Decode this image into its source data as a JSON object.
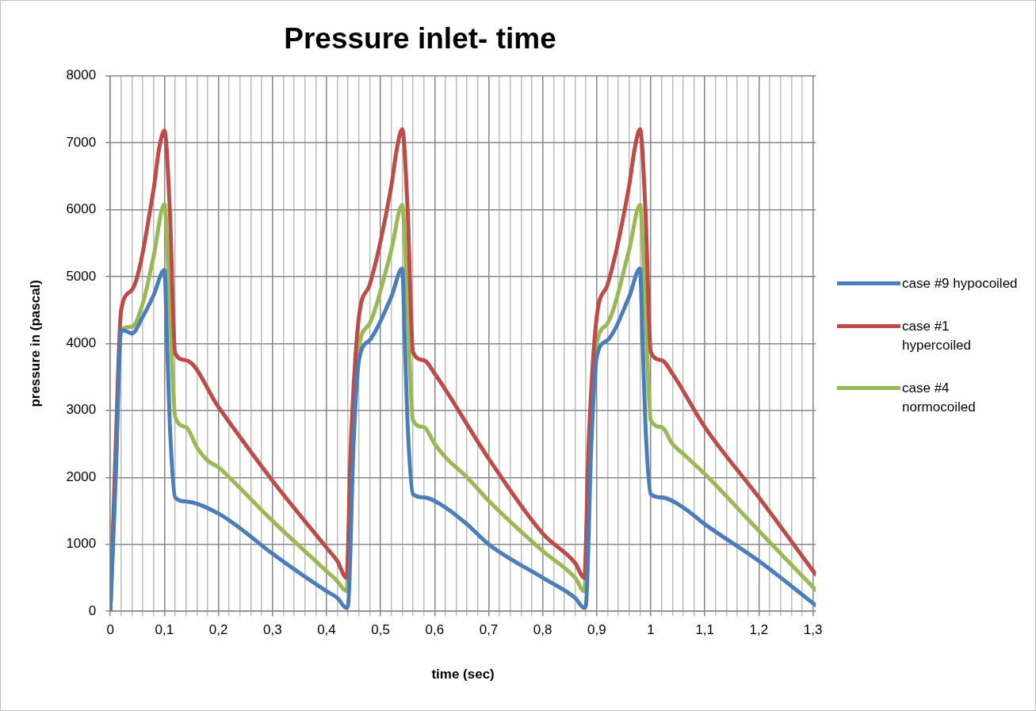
{
  "chart_data": {
    "type": "line",
    "title": "Pressure inlet- time",
    "xlabel": "time (sec)",
    "ylabel": "pressure in (pascal)",
    "xlim": [
      0,
      1.305
    ],
    "ylim": [
      0,
      8000
    ],
    "xticks": [
      {
        "value": 0,
        "label": "0"
      },
      {
        "value": 0.02,
        "label": null
      },
      {
        "value": 0.04,
        "label": null
      },
      {
        "value": 0.06,
        "label": null
      },
      {
        "value": 0.08,
        "label": null
      },
      {
        "value": 0.1,
        "label": "0,1"
      },
      {
        "value": 0.12,
        "label": null
      },
      {
        "value": 0.14,
        "label": null
      },
      {
        "value": 0.16,
        "label": null
      },
      {
        "value": 0.18,
        "label": null
      },
      {
        "value": 0.2,
        "label": "0,2"
      },
      {
        "value": 0.22,
        "label": null
      },
      {
        "value": 0.24,
        "label": null
      },
      {
        "value": 0.26,
        "label": null
      },
      {
        "value": 0.28,
        "label": null
      },
      {
        "value": 0.3,
        "label": "0,3"
      },
      {
        "value": 0.32,
        "label": null
      },
      {
        "value": 0.34,
        "label": null
      },
      {
        "value": 0.36,
        "label": null
      },
      {
        "value": 0.38,
        "label": null
      },
      {
        "value": 0.4,
        "label": "0,4"
      },
      {
        "value": 0.42,
        "label": null
      },
      {
        "value": 0.44,
        "label": null
      },
      {
        "value": 0.46,
        "label": null
      },
      {
        "value": 0.48,
        "label": null
      },
      {
        "value": 0.5,
        "label": "0,5"
      },
      {
        "value": 0.52,
        "label": null
      },
      {
        "value": 0.54,
        "label": null
      },
      {
        "value": 0.56,
        "label": null
      },
      {
        "value": 0.58,
        "label": null
      },
      {
        "value": 0.6,
        "label": "0,6"
      },
      {
        "value": 0.62,
        "label": null
      },
      {
        "value": 0.64,
        "label": null
      },
      {
        "value": 0.66,
        "label": null
      },
      {
        "value": 0.68,
        "label": null
      },
      {
        "value": 0.7,
        "label": "0,7"
      },
      {
        "value": 0.72,
        "label": null
      },
      {
        "value": 0.74,
        "label": null
      },
      {
        "value": 0.76,
        "label": null
      },
      {
        "value": 0.78,
        "label": null
      },
      {
        "value": 0.8,
        "label": "0,8"
      },
      {
        "value": 0.82,
        "label": null
      },
      {
        "value": 0.84,
        "label": null
      },
      {
        "value": 0.86,
        "label": null
      },
      {
        "value": 0.88,
        "label": null
      },
      {
        "value": 0.9,
        "label": "0,9"
      },
      {
        "value": 0.92,
        "label": null
      },
      {
        "value": 0.94,
        "label": null
      },
      {
        "value": 0.96,
        "label": null
      },
      {
        "value": 0.98,
        "label": null
      },
      {
        "value": 1,
        "label": "1"
      },
      {
        "value": 1.02,
        "label": null
      },
      {
        "value": 1.04,
        "label": null
      },
      {
        "value": 1.06,
        "label": null
      },
      {
        "value": 1.08,
        "label": null
      },
      {
        "value": 1.1,
        "label": "1,1"
      },
      {
        "value": 1.12,
        "label": null
      },
      {
        "value": 1.14,
        "label": null
      },
      {
        "value": 1.16,
        "label": null
      },
      {
        "value": 1.18,
        "label": null
      },
      {
        "value": 1.2,
        "label": "1,2"
      },
      {
        "value": 1.22,
        "label": null
      },
      {
        "value": 1.24,
        "label": null
      },
      {
        "value": 1.26,
        "label": null
      },
      {
        "value": 1.28,
        "label": null
      },
      {
        "value": 1.3,
        "label": "1,3"
      }
    ],
    "yticks": [
      0,
      1000,
      2000,
      3000,
      4000,
      5000,
      6000,
      7000,
      8000
    ],
    "grid": true,
    "legend": "right",
    "marker": "none",
    "line_style": "solid",
    "series": [
      {
        "name": "case #9 hypocoiled",
        "color": "#4a7ebb",
        "x": [
          0,
          0.01,
          0.02,
          0.03,
          0.04,
          0.06,
          0.08,
          0.1,
          0.105,
          0.11,
          0.12,
          0.14,
          0.2,
          0.24,
          0.3,
          0.4,
          0.42,
          0.437,
          0.44,
          0.45,
          0.46,
          0.48,
          0.52,
          0.54,
          0.545,
          0.55,
          0.56,
          0.58,
          0.62,
          0.66,
          0.7,
          0.8,
          0.86,
          0.877,
          0.88,
          0.89,
          0.9,
          0.92,
          0.96,
          0.98,
          0.985,
          0.99,
          1,
          1.02,
          1.06,
          1.1,
          1.2,
          1.305
        ],
        "values": [
          0,
          2000,
          4200,
          4180,
          4150,
          4400,
          4720,
          5100,
          4000,
          2800,
          1700,
          1640,
          1460,
          1240,
          860,
          300,
          200,
          50,
          100,
          2500,
          3750,
          4050,
          4700,
          5120,
          4000,
          2800,
          1750,
          1700,
          1550,
          1300,
          1000,
          500,
          200,
          50,
          100,
          2500,
          3800,
          4050,
          4700,
          5120,
          4000,
          2800,
          1750,
          1700,
          1550,
          1300,
          750,
          90
        ]
      },
      {
        "name": "case #1 hypercoiled",
        "color": "#be4b48",
        "x": [
          0,
          0.01,
          0.02,
          0.04,
          0.08,
          0.09,
          0.1,
          0.11,
          0.12,
          0.14,
          0.2,
          0.3,
          0.4,
          0.42,
          0.437,
          0.445,
          0.46,
          0.48,
          0.52,
          0.53,
          0.54,
          0.55,
          0.56,
          0.58,
          0.6,
          0.7,
          0.8,
          0.86,
          0.877,
          0.885,
          0.9,
          0.92,
          0.96,
          0.97,
          0.98,
          0.99,
          1,
          1.02,
          1.04,
          1.1,
          1.2,
          1.305
        ],
        "values": [
          0,
          2500,
          4500,
          4800,
          6300,
          6900,
          7180,
          6000,
          3850,
          3750,
          3050,
          1950,
          950,
          750,
          500,
          2500,
          4400,
          4880,
          6360,
          6900,
          7200,
          6000,
          3870,
          3750,
          3550,
          2280,
          1160,
          720,
          500,
          2500,
          4400,
          4880,
          6360,
          6900,
          7200,
          6000,
          3870,
          3750,
          3550,
          2750,
          1700,
          550
        ]
      },
      {
        "name": "case #4 normocoiled",
        "color": "#98b954",
        "x": [
          0,
          0.01,
          0.02,
          0.04,
          0.06,
          0.08,
          0.1,
          0.11,
          0.12,
          0.14,
          0.16,
          0.18,
          0.2,
          0.22,
          0.3,
          0.4,
          0.42,
          0.437,
          0.445,
          0.46,
          0.48,
          0.52,
          0.54,
          0.55,
          0.56,
          0.58,
          0.6,
          0.62,
          0.66,
          0.7,
          0.8,
          0.86,
          0.877,
          0.885,
          0.9,
          0.92,
          0.96,
          0.98,
          0.99,
          1,
          1.02,
          1.04,
          1.06,
          1.1,
          1.2,
          1.305
        ],
        "values": [
          0,
          2200,
          4200,
          4250,
          4600,
          5300,
          6080,
          4500,
          2900,
          2750,
          2450,
          2250,
          2150,
          2000,
          1350,
          600,
          450,
          300,
          2200,
          3950,
          4300,
          5400,
          6070,
          4500,
          2850,
          2750,
          2500,
          2300,
          2000,
          1650,
          900,
          500,
          300,
          2200,
          4000,
          4300,
          5400,
          6070,
          4500,
          2850,
          2750,
          2500,
          2350,
          2050,
          1200,
          320
        ]
      }
    ]
  }
}
